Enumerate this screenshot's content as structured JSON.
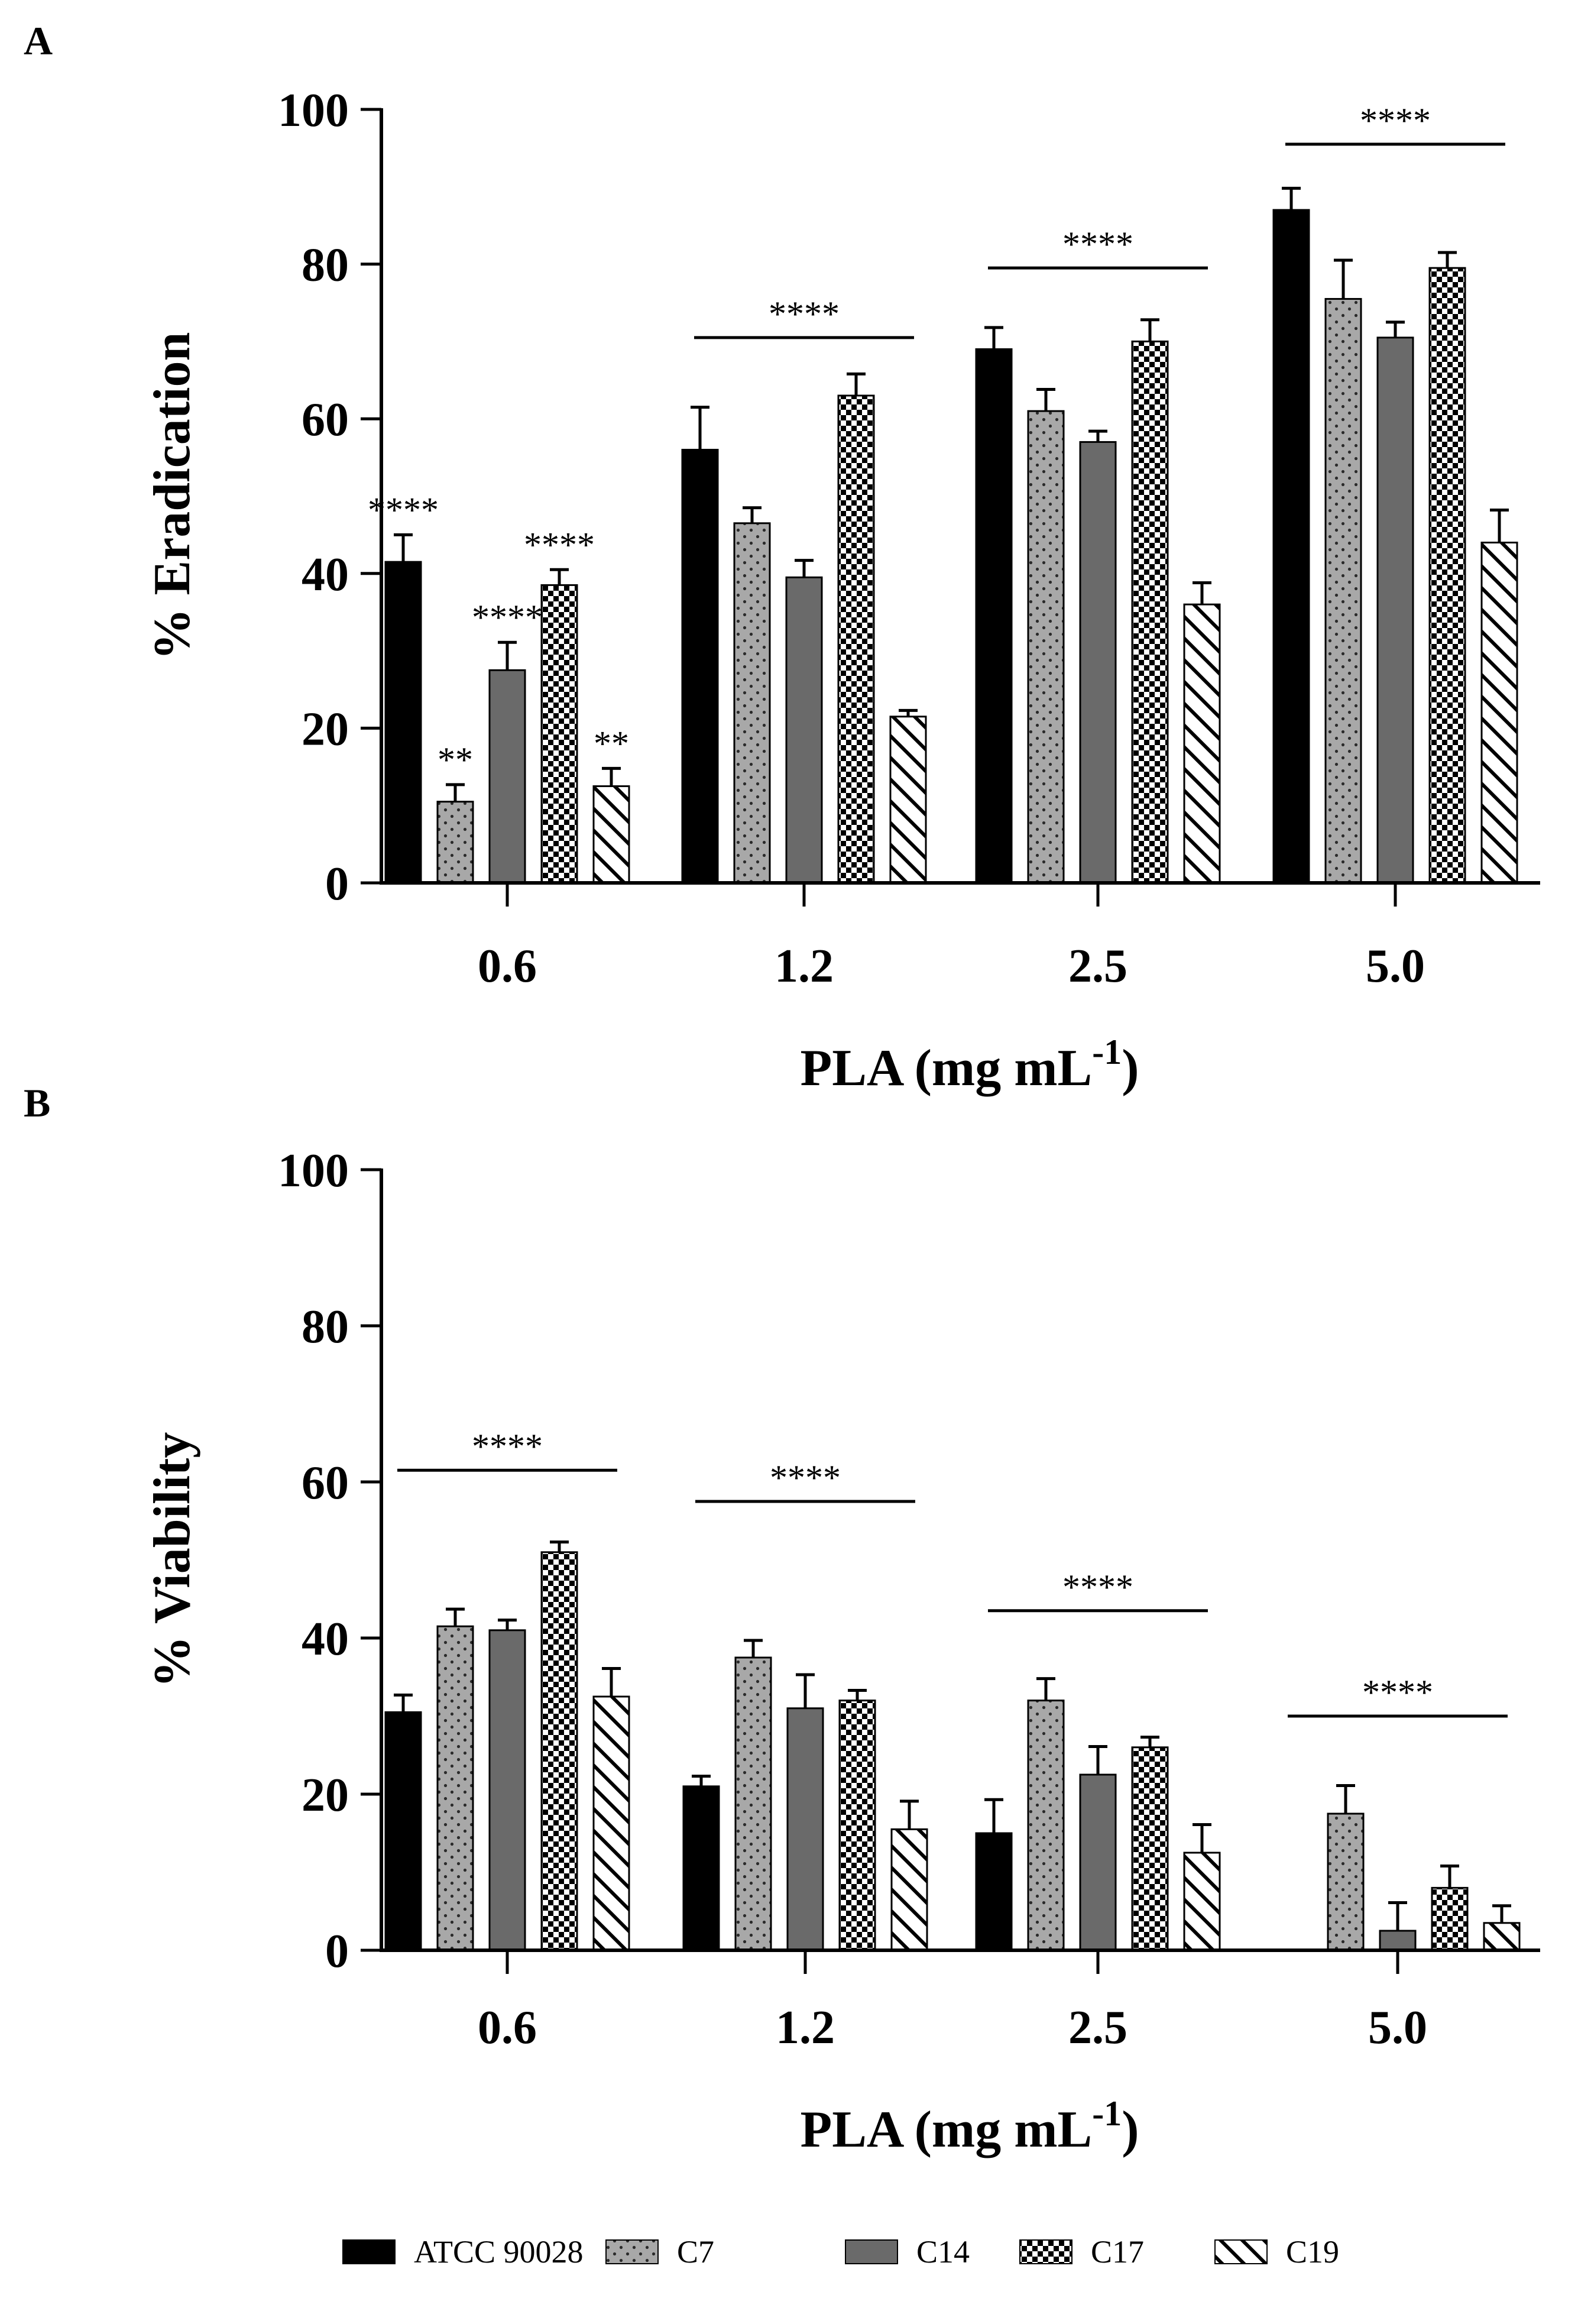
{
  "chart_data": [
    {
      "panel": "A",
      "type": "bar",
      "ylabel": "% Eradication",
      "xlabel": "PLA (mg mL",
      "xlabel_sup": "-1",
      "xlabel_close": ")",
      "ylim": [
        0,
        100
      ],
      "yticks": [
        0,
        20,
        40,
        60,
        80,
        100
      ],
      "categories": [
        "0.6",
        "1.2",
        "2.5",
        "5.0"
      ],
      "series": [
        {
          "name": "ATCC 90028",
          "values": [
            41.5,
            56,
            69,
            87
          ],
          "errors": [
            3.5,
            5.5,
            2.8,
            2.8
          ]
        },
        {
          "name": "C7",
          "values": [
            10.5,
            46.5,
            61,
            75.5
          ],
          "errors": [
            2.2,
            2.0,
            2.8,
            5.0
          ]
        },
        {
          "name": "C14",
          "values": [
            27.5,
            39.5,
            57,
            70.5
          ],
          "errors": [
            3.6,
            2.2,
            1.4,
            2.0
          ]
        },
        {
          "name": "C17",
          "values": [
            38.5,
            63,
            70,
            79.5
          ],
          "errors": [
            2.0,
            2.8,
            2.8,
            2.0
          ]
        },
        {
          "name": "C19",
          "values": [
            12.5,
            21.5,
            36,
            44
          ],
          "errors": [
            2.3,
            0.8,
            2.8,
            4.2
          ]
        }
      ],
      "bar_annotations": [
        {
          "group": 0,
          "series": 0,
          "text": "****"
        },
        {
          "group": 0,
          "series": 1,
          "text": "**"
        },
        {
          "group": 0,
          "series": 2,
          "text": "****"
        },
        {
          "group": 0,
          "series": 3,
          "text": "****"
        },
        {
          "group": 0,
          "series": 4,
          "text": "**"
        }
      ],
      "brackets": [
        {
          "group": 1,
          "y": 70.5,
          "text": "****"
        },
        {
          "group": 2,
          "y": 79.5,
          "text": "****"
        },
        {
          "group": 3,
          "y": 95.5,
          "text": "****"
        }
      ]
    },
    {
      "panel": "B",
      "type": "bar",
      "ylabel": "% Viability",
      "xlabel": "PLA (mg mL",
      "xlabel_sup": "-1",
      "xlabel_close": ")",
      "ylim": [
        0,
        100
      ],
      "yticks": [
        0,
        20,
        40,
        60,
        80,
        100
      ],
      "categories": [
        "0.6",
        "1.2",
        "2.5",
        "5.0"
      ],
      "series": [
        {
          "name": "ATCC 90028",
          "values": [
            30.5,
            21,
            15,
            0
          ],
          "errors": [
            2.2,
            1.3,
            4.3,
            0
          ]
        },
        {
          "name": "C7",
          "values": [
            41.5,
            37.5,
            32,
            17.5
          ],
          "errors": [
            2.2,
            2.2,
            2.8,
            3.6
          ]
        },
        {
          "name": "C14",
          "values": [
            41,
            31,
            22.5,
            2.5
          ],
          "errors": [
            1.3,
            4.3,
            3.6,
            3.6
          ]
        },
        {
          "name": "C17",
          "values": [
            51,
            32,
            26,
            8
          ],
          "errors": [
            1.3,
            1.3,
            1.3,
            2.8
          ]
        },
        {
          "name": "C19",
          "values": [
            32.5,
            15.5,
            12.5,
            3.5
          ],
          "errors": [
            3.6,
            3.6,
            3.6,
            2.2
          ]
        }
      ],
      "bar_annotations": [],
      "brackets": [
        {
          "group": 0,
          "y": 61.5,
          "text": "****"
        },
        {
          "group": 1,
          "y": 57.5,
          "text": "****"
        },
        {
          "group": 2,
          "y": 43.5,
          "text": "****"
        },
        {
          "group": 3,
          "y": 30.0,
          "text": "****"
        }
      ]
    }
  ],
  "legend": [
    {
      "label": "ATCC 90028",
      "pattern": "solid-black"
    },
    {
      "label": "C7",
      "pattern": "dots-gray"
    },
    {
      "label": "C14",
      "pattern": "solid-darkgray"
    },
    {
      "label": "C17",
      "pattern": "checker"
    },
    {
      "label": "C19",
      "pattern": "diagonal-hatch"
    }
  ],
  "colors": {
    "atcc": "#000000",
    "c7": "#a8a8a8",
    "c14": "#6a6a6a",
    "c17_dark": "#000000",
    "c17_light": "#ffffff",
    "c19_line": "#000000",
    "c19_bg": "#ffffff"
  }
}
